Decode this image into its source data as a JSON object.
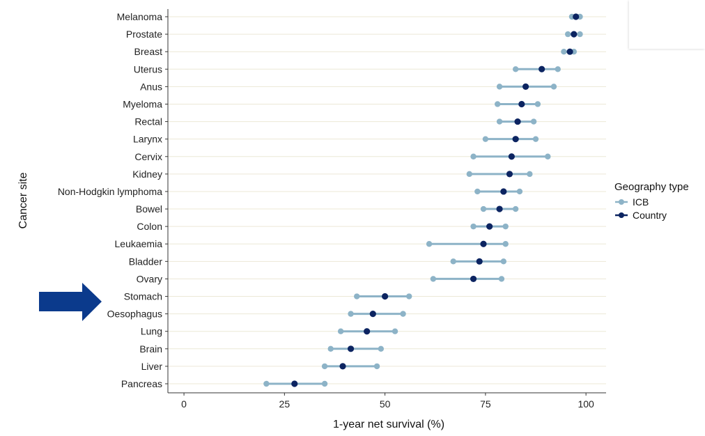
{
  "colors": {
    "icb": "#8db3c7",
    "country": "#0c2461",
    "arrow": "#0b3a8c",
    "grid": "#ece8d6"
  },
  "legend": {
    "title": "Geography type",
    "items": [
      {
        "label": "ICB",
        "color": "#8db3c7"
      },
      {
        "label": "Country",
        "color": "#0c2461"
      }
    ]
  },
  "annotation": {
    "arrow_target": "Stomach"
  },
  "chart_data": {
    "type": "dumbbell",
    "xlabel": "1-year net survival (%)",
    "ylabel": "Cancer site",
    "xlim": [
      -4,
      105
    ],
    "xticks": [
      0,
      25,
      50,
      75,
      100
    ],
    "grid": "horizontal",
    "legend_position": "right",
    "categories": [
      "Melanoma",
      "Prostate",
      "Breast",
      "Uterus",
      "Anus",
      "Myeloma",
      "Rectal",
      "Larynx",
      "Cervix",
      "Kidney",
      "Non-Hodgkin lymphoma",
      "Bowel",
      "Colon",
      "Leukaemia",
      "Bladder",
      "Ovary",
      "Stomach",
      "Oesophagus",
      "Lung",
      "Brain",
      "Liver",
      "Pancreas"
    ],
    "series": [
      {
        "name": "ICB",
        "type": "range",
        "min": [
          96.5,
          95.5,
          94.5,
          82.5,
          78.5,
          78,
          78.5,
          75,
          72,
          71,
          73,
          74.5,
          72,
          61,
          67,
          62,
          43,
          41.5,
          39,
          36.5,
          35,
          20.5
        ],
        "max": [
          98.5,
          98.5,
          97,
          93,
          92,
          88,
          87,
          87.5,
          90.5,
          86,
          83.5,
          82.5,
          80,
          80,
          79.5,
          79,
          56,
          54.5,
          52.5,
          49,
          48,
          35
        ]
      },
      {
        "name": "Country",
        "type": "point",
        "values": [
          97.5,
          97,
          96,
          89,
          85,
          84,
          83,
          82.5,
          81.5,
          81,
          79.5,
          78.5,
          76,
          74.5,
          73.5,
          72,
          50,
          47,
          45.5,
          41.5,
          39.5,
          27.5
        ]
      }
    ]
  }
}
